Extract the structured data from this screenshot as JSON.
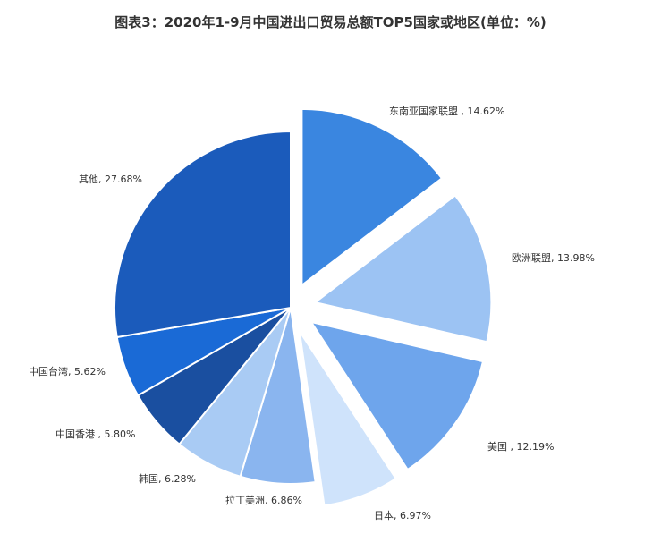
{
  "chart_data": {
    "type": "pie",
    "title": "图表3：2020年1-9月中国进出口贸易总额TOP5国家或地区(单位：%)",
    "slices": [
      {
        "name": "东南亚国家联盟",
        "value": 14.62,
        "label": "东南亚国家联盟 , 14.62%",
        "color": "#3a86e0",
        "exploded": true
      },
      {
        "name": "欧洲联盟",
        "value": 13.98,
        "label": "欧洲联盟, 13.98%",
        "color": "#9cc3f3",
        "exploded": true
      },
      {
        "name": "美国",
        "value": 12.19,
        "label": "美国 , 12.19%",
        "color": "#6ea5ec",
        "exploded": true
      },
      {
        "name": "日本",
        "value": 6.97,
        "label": "日本, 6.97%",
        "color": "#cfe3fb",
        "exploded": true
      },
      {
        "name": "拉丁美洲",
        "value": 6.86,
        "label": "拉丁美洲, 6.86%",
        "color": "#8ab5ef",
        "exploded": false
      },
      {
        "name": "韩国",
        "value": 6.28,
        "label": "韩国, 6.28%",
        "color": "#a9cbf4",
        "exploded": false
      },
      {
        "name": "中国香港",
        "value": 5.8,
        "label": "中国香港 , 5.80%",
        "color": "#1a4fa0",
        "exploded": false
      },
      {
        "name": "中国台湾",
        "value": 5.62,
        "label": "中国台湾, 5.62%",
        "color": "#1a6ad6",
        "exploded": false
      },
      {
        "name": "其他",
        "value": 27.68,
        "label": "其他, 27.68%",
        "color": "#1b5bbb",
        "exploded": false
      }
    ]
  }
}
